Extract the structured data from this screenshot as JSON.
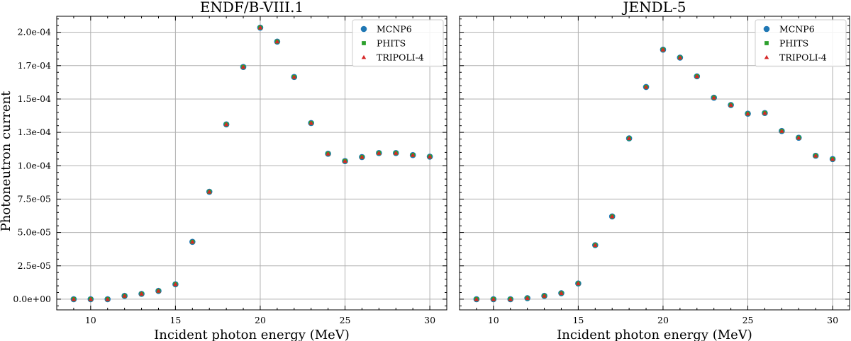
{
  "figure": {
    "ylabel": "Photoneutron current",
    "xlabel": "Incident photon energy (MeV)"
  },
  "chart_data": [
    {
      "type": "scatter",
      "title": "ENDF/B-VIII.1",
      "xlabel": "Incident photon energy (MeV)",
      "ylabel": "Photoneutron current",
      "xlim": [
        8.0,
        31.0
      ],
      "ylim": [
        -8e-06,
        0.000212
      ],
      "xticks": [
        10,
        15,
        20,
        25,
        30
      ],
      "xtick_labels": [
        "10",
        "15",
        "20",
        "25",
        "30"
      ],
      "yticks": [
        0,
        2.5e-05,
        5e-05,
        7.5e-05,
        0.0001,
        0.000125,
        0.00015,
        0.000175,
        0.0002
      ],
      "ytick_labels": [
        "0.0e+00",
        "2.5e-05",
        "5.0e-05",
        "7.5e-05",
        "1.0e-04",
        "1.3e-04",
        "1.5e-04",
        "1.7e-04",
        "2.0e-04"
      ],
      "grid": true,
      "legend_position": "top-right",
      "x": [
        9,
        10,
        11,
        12,
        13,
        14,
        15,
        16,
        17,
        18,
        19,
        20,
        21,
        22,
        23,
        24,
        25,
        26,
        27,
        28,
        29,
        30
      ],
      "series": [
        {
          "name": "MCNP6",
          "marker": "circle",
          "color": "#1f77b4",
          "values": [
            0.0,
            0.0,
            0.0,
            2.5e-06,
            4e-06,
            6.2e-06,
            1.12e-05,
            4.3e-05,
            8.05e-05,
            0.000131,
            0.000174,
            0.0002035,
            0.000193,
            0.0001665,
            0.000132,
            0.000109,
            0.0001035,
            0.0001065,
            0.0001095,
            0.0001095,
            0.000108,
            0.0001068
          ]
        },
        {
          "name": "PHITS",
          "marker": "square",
          "color": "#2ca02c",
          "values": [
            0.0,
            0.0,
            0.0,
            2.5e-06,
            4e-06,
            6.2e-06,
            1.12e-05,
            4.3e-05,
            8.05e-05,
            0.000131,
            0.000174,
            0.0002035,
            0.000193,
            0.0001665,
            0.000132,
            0.000109,
            0.0001035,
            0.0001065,
            0.0001095,
            0.0001095,
            0.000108,
            0.0001068
          ]
        },
        {
          "name": "TRIPOLI-4",
          "marker": "triangle",
          "color": "#d62728",
          "values": [
            0.0,
            0.0,
            0.0,
            2.5e-06,
            4e-06,
            6.2e-06,
            1.12e-05,
            4.3e-05,
            8.05e-05,
            0.000131,
            0.000174,
            0.0002035,
            0.000193,
            0.0001665,
            0.000132,
            0.000109,
            0.0001035,
            0.0001065,
            0.0001095,
            0.0001095,
            0.000108,
            0.0001068
          ]
        }
      ]
    },
    {
      "type": "scatter",
      "title": "JENDL-5",
      "xlabel": "Incident photon energy (MeV)",
      "ylabel": "",
      "xlim": [
        8.0,
        31.0
      ],
      "ylim": [
        -8e-06,
        0.000212
      ],
      "xticks": [
        10,
        15,
        20,
        25,
        30
      ],
      "xtick_labels": [
        "10",
        "15",
        "20",
        "25",
        "30"
      ],
      "yticks": [
        0,
        2.5e-05,
        5e-05,
        7.5e-05,
        0.0001,
        0.000125,
        0.00015,
        0.000175,
        0.0002
      ],
      "ytick_labels": [],
      "grid": true,
      "legend_position": "top-right",
      "x": [
        9,
        10,
        11,
        12,
        13,
        14,
        15,
        16,
        17,
        18,
        19,
        20,
        21,
        22,
        23,
        24,
        25,
        26,
        27,
        28,
        29,
        30
      ],
      "series": [
        {
          "name": "MCNP6",
          "marker": "circle",
          "color": "#1f77b4",
          "values": [
            0.0,
            0.0,
            0.0,
            8e-07,
            2.5e-06,
            4.5e-06,
            1.18e-05,
            4.05e-05,
            6.2e-05,
            0.0001205,
            0.000159,
            0.000187,
            0.000181,
            0.000167,
            0.000151,
            0.0001455,
            0.000139,
            0.0001395,
            0.000126,
            0.000121,
            0.0001075,
            0.000105
          ]
        },
        {
          "name": "PHITS",
          "marker": "square",
          "color": "#2ca02c",
          "values": [
            0.0,
            0.0,
            0.0,
            8e-07,
            2.5e-06,
            4.5e-06,
            1.18e-05,
            4.05e-05,
            6.2e-05,
            0.0001205,
            0.000159,
            0.000187,
            0.000181,
            0.000167,
            0.000151,
            0.0001455,
            0.000139,
            0.0001395,
            0.000126,
            0.000121,
            0.0001075,
            0.000105
          ]
        },
        {
          "name": "TRIPOLI-4",
          "marker": "triangle",
          "color": "#d62728",
          "values": [
            0.0,
            0.0,
            0.0,
            8e-07,
            2.5e-06,
            4.5e-06,
            1.18e-05,
            4.05e-05,
            6.2e-05,
            0.0001205,
            0.000159,
            0.000187,
            0.000181,
            0.000167,
            0.000151,
            0.0001455,
            0.000139,
            0.0001395,
            0.000126,
            0.000121,
            0.0001075,
            0.000105
          ]
        }
      ]
    }
  ]
}
